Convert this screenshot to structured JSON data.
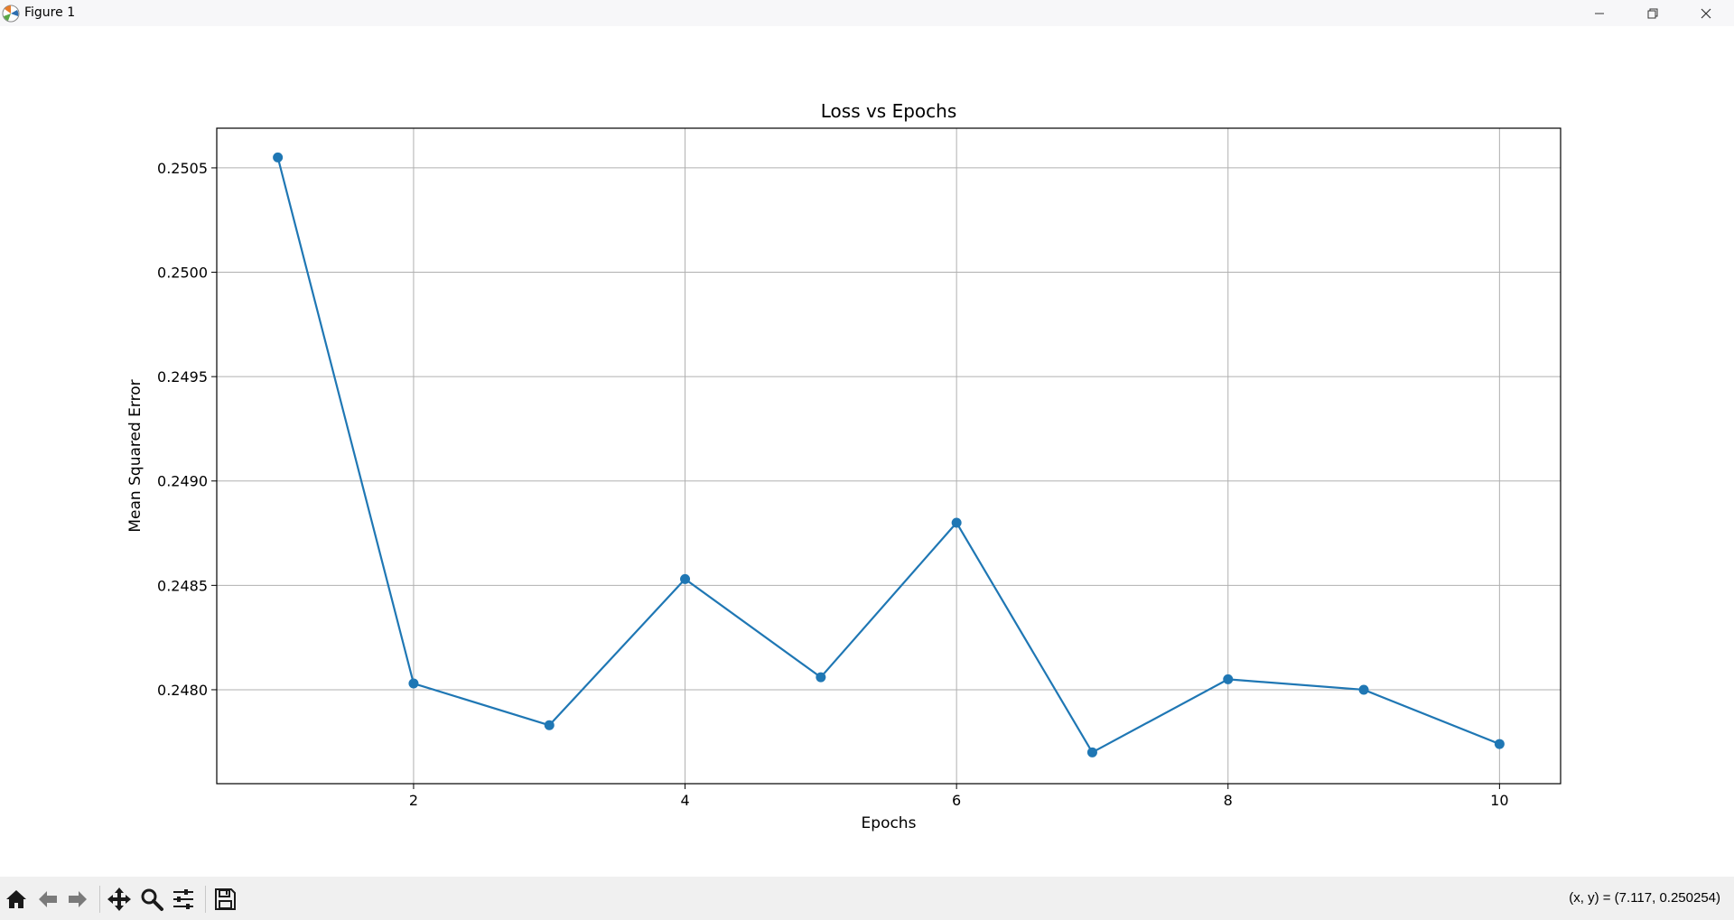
{
  "window": {
    "title": "Figure 1",
    "app_icon": "matplotlib-icon",
    "controls": [
      "minimize-icon",
      "restore-icon",
      "close-icon"
    ]
  },
  "toolbar": {
    "buttons": [
      "home-icon",
      "back-arrow-icon",
      "forward-arrow-icon",
      "pan-icon",
      "zoom-icon",
      "configure-subplots-icon",
      "save-icon"
    ],
    "coords_text": "(x, y) = (7.117, 0.250254)"
  },
  "chart_data": {
    "type": "line",
    "title": "Loss vs Epochs",
    "xlabel": "Epochs",
    "ylabel": "Mean Squared Error",
    "x": [
      1,
      2,
      3,
      4,
      5,
      6,
      7,
      8,
      9,
      10
    ],
    "series": [
      {
        "values": [
          0.25055,
          0.24803,
          0.24783,
          0.24853,
          0.24806,
          0.2488,
          0.2477,
          0.24805,
          0.248,
          0.24774
        ],
        "color": "#1f77b4",
        "marker": "circle"
      }
    ],
    "xlim": [
      0.55,
      10.45
    ],
    "ylim": [
      0.24755,
      0.25069
    ],
    "xticks": [
      2,
      4,
      6,
      8,
      10
    ],
    "xtick_labels": [
      "2",
      "4",
      "6",
      "8",
      "10"
    ],
    "yticks": [
      0.248,
      0.2485,
      0.249,
      0.2495,
      0.25,
      0.2505
    ],
    "ytick_labels": [
      "0.2480",
      "0.2485",
      "0.2490",
      "0.2495",
      "0.2500",
      "0.2505"
    ],
    "grid": true,
    "legend": false
  }
}
